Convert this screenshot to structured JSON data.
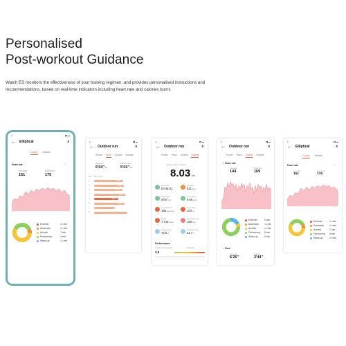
{
  "headline": {
    "line1": "Personalised",
    "line2": "Post-workout Guidance"
  },
  "description": "Watch ES monitors the effectiveness of your training regimen, and provides personalised instructions and recommendations, based on real-time indicators including heart rate and calories burnt.",
  "colors": {
    "accent": "#e8643c",
    "heart": "#f3a1aa",
    "phone_frame": "#6fb0b8"
  },
  "screens": {
    "elliptical_phone": {
      "title": "Elliptical",
      "tabs": [
        "Charts",
        "Details"
      ],
      "heart_label": "Heart rate",
      "avg_label": "Average",
      "avg_value": "151",
      "max_label": "Maximum",
      "max_value": "175",
      "zones": [
        {
          "name": "Extreme",
          "value": "<1 min",
          "color": "#e84a3c"
        },
        {
          "name": "Anaerobic",
          "value": "<1 min",
          "color": "#f0913a"
        },
        {
          "name": "Aerobic",
          "value": "7 min",
          "color": "#f5c534"
        },
        {
          "name": "Fat burning",
          "value": "4 min",
          "color": "#8ccf5a"
        },
        {
          "name": "Warm-up",
          "value": "<1 min",
          "color": "#58b7e8"
        }
      ]
    },
    "pace_screen": {
      "title": "Outdoor run",
      "tabs": [
        "Route",
        "Pace",
        "Charts",
        "Details"
      ],
      "avg_pace_label": "Avg pace",
      "avg_pace_value": "6'04\"",
      "fast_pace_label": "Fastest pace",
      "fast_pace_value": "5'03\"",
      "unit": "/km",
      "list_header": [
        "KM",
        "Pace (/km)"
      ],
      "bars": [
        {
          "km": "1",
          "pace": 0.72,
          "label": "6'02\""
        },
        {
          "km": "2",
          "pace": 0.74,
          "label": "6'05\""
        },
        {
          "km": "3",
          "pace": 0.7,
          "label": "6'00\""
        },
        {
          "km": "4",
          "pace": 0.78,
          "label": "6'10\""
        },
        {
          "km": "5",
          "pace": 0.6,
          "label": "5'03\""
        },
        {
          "km": "6",
          "pace": 0.75,
          "label": "6'08\""
        },
        {
          "km": "7",
          "pace": 0.52,
          "label": ""
        },
        {
          "km": "8",
          "pace": 0.82,
          "label": ""
        }
      ]
    },
    "overview_screen": {
      "title": "Outdoor run",
      "tabs": [
        "Route",
        "Pace",
        "Charts",
        "Details"
      ],
      "date": "July 10, 2020, 7:16 PM",
      "distance": "8.03",
      "distance_unit": "km",
      "metrics": [
        {
          "label": "Duration",
          "value": "00:48:41",
          "unit": "",
          "color": "#7cc39a"
        },
        {
          "label": "Calories",
          "value": "531",
          "unit": "kcal",
          "color": "#f0913a"
        },
        {
          "label": "Avg pace",
          "value": "6'04\"",
          "unit": "/km",
          "color": "#7cc39a"
        },
        {
          "label": "Avg speed",
          "value": "9.90",
          "unit": "km/h",
          "color": "#7cc39a"
        },
        {
          "label": "Avg cadence",
          "value": "158",
          "unit": "steps/min",
          "color": "#e8643c"
        },
        {
          "label": "Avg stride",
          "value": "104",
          "unit": "cm",
          "color": "#e8643c"
        },
        {
          "label": "Steps",
          "value": "7,719",
          "unit": "steps",
          "color": "#e8643c"
        },
        {
          "label": "Avg heart rate",
          "value": "150",
          "unit": "bpm",
          "color": "#f27a84"
        },
        {
          "label": "Total ascent",
          "value": "72.8",
          "unit": "m",
          "color": "#9ad0ee"
        },
        {
          "label": "Total descent",
          "value": "51.7",
          "unit": "m",
          "color": "#9ad0ee"
        }
      ],
      "performance_label": "Performance",
      "training_effect_label": "Aerobic training effect",
      "training_effect_value": "3.6",
      "training_effect_tag": "Improving"
    },
    "charts_screen": {
      "title": "Outdoor run",
      "tabs": [
        "Route",
        "Pace",
        "Charts",
        "Details"
      ],
      "heart_label": "Heart rate",
      "avg_label": "Average",
      "avg_value": "144",
      "max_label": "Maximum",
      "max_value": "169",
      "zones": [
        {
          "name": "Extreme",
          "value": "0 min",
          "color": "#e84a3c"
        },
        {
          "name": "Anaerobic",
          "value": "<1 min",
          "color": "#f0913a"
        },
        {
          "name": "Aerobic",
          "value": "<1 min",
          "color": "#f5c534"
        },
        {
          "name": "Fat burning",
          "value": "8 min",
          "color": "#8ccf5a"
        },
        {
          "name": "Warm-up",
          "value": "0 min",
          "color": "#58b7e8"
        }
      ],
      "pace_label": "Pace",
      "pace_avg_label": "Average",
      "pace_avg_value": "6'26\"",
      "pace_fast_label": "Fastest",
      "pace_fast_value": "2'44\""
    },
    "elliptical_screen": {
      "title": "Elliptical",
      "tabs": [
        "Charts",
        "Details"
      ],
      "heart_label": "Heart rate",
      "avg_label": "Average",
      "avg_value": "151",
      "max_label": "Maximum",
      "max_value": "175",
      "zones": [
        {
          "name": "Extreme",
          "value": "<1 min",
          "color": "#e84a3c"
        },
        {
          "name": "Anaerobic",
          "value": "<1 min",
          "color": "#f0913a"
        },
        {
          "name": "Aerobic",
          "value": "7 min",
          "color": "#f5c534"
        },
        {
          "name": "Fat burning",
          "value": "4 min",
          "color": "#8ccf5a"
        },
        {
          "name": "Warm-up",
          "value": "<1 min",
          "color": "#58b7e8"
        }
      ]
    }
  }
}
